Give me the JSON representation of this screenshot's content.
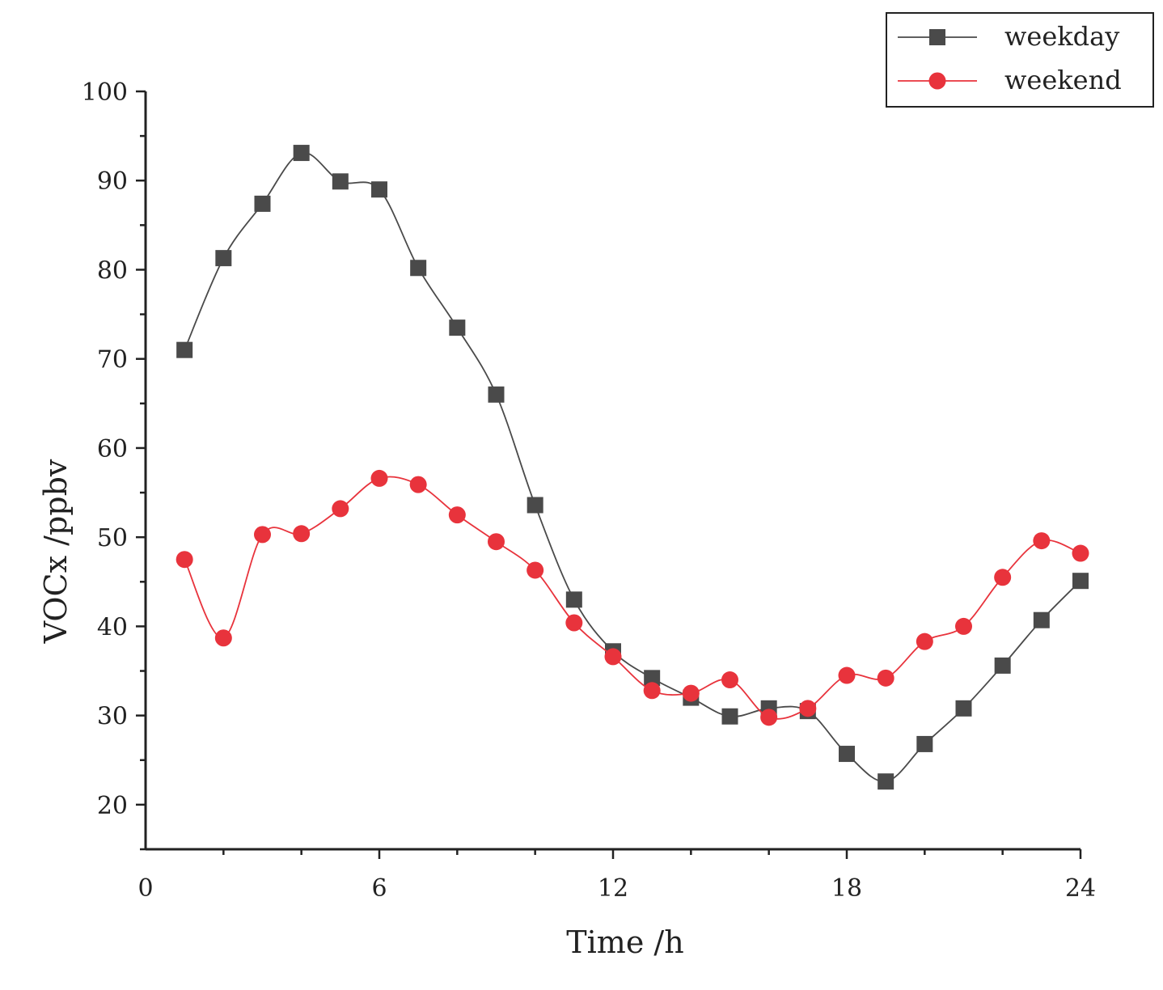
{
  "chart_data": {
    "type": "line",
    "title": "",
    "xlabel": "Time /h",
    "ylabel": "VOCx /ppbv",
    "xlim": [
      0,
      24
    ],
    "ylim": [
      15,
      100
    ],
    "x_ticks": [
      0,
      6,
      12,
      18,
      24
    ],
    "y_ticks": [
      20,
      30,
      40,
      50,
      60,
      70,
      80,
      90,
      100
    ],
    "legend_position": "top-right",
    "grid": false,
    "x": [
      1,
      2,
      3,
      4,
      5,
      6,
      7,
      8,
      9,
      10,
      11,
      12,
      13,
      14,
      15,
      16,
      17,
      18,
      19,
      20,
      21,
      22,
      23,
      24
    ],
    "series": [
      {
        "name": "weekday",
        "color": "#4a4a4a",
        "marker": "square",
        "values": [
          71,
          81.3,
          87.4,
          93.1,
          89.9,
          89,
          80.2,
          73.5,
          66,
          53.6,
          43,
          37.2,
          34.2,
          32,
          29.9,
          30.8,
          30.5,
          25.7,
          22.6,
          26.8,
          30.8,
          35.6,
          40.7,
          45.1
        ]
      },
      {
        "name": "weekend",
        "color": "#e8333c",
        "marker": "circle",
        "values": [
          47.5,
          38.7,
          50.3,
          50.4,
          53.2,
          56.6,
          55.9,
          52.5,
          49.5,
          46.3,
          40.4,
          36.6,
          32.8,
          32.5,
          34,
          29.8,
          30.8,
          34.5,
          34.2,
          38.3,
          40,
          45.5,
          49.6,
          48.2
        ]
      }
    ]
  }
}
